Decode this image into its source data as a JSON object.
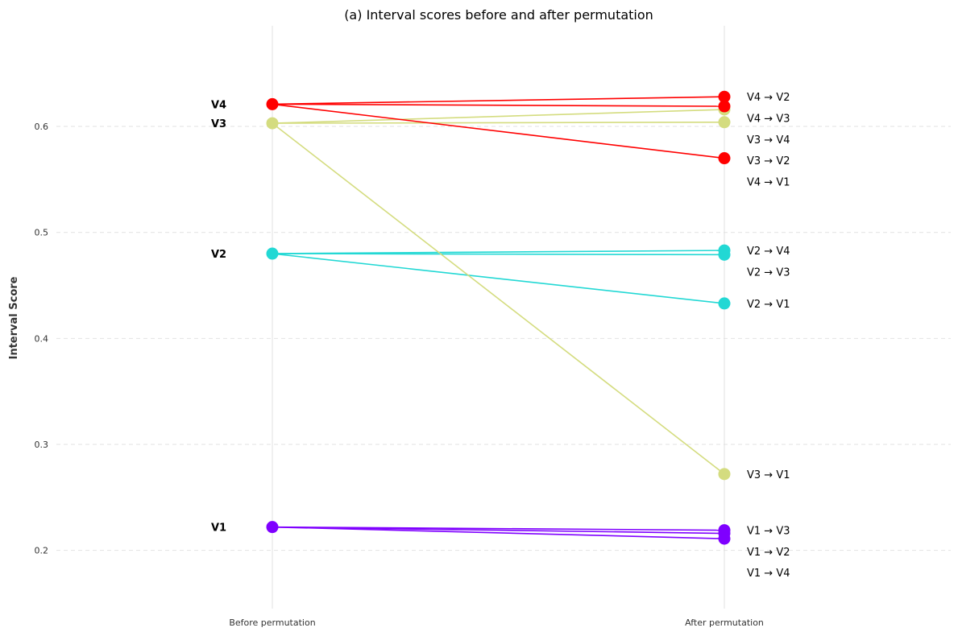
{
  "chart_data": {
    "type": "slope",
    "title": "(a) Interval scores before and after permutation",
    "ylabel": "Interval Score",
    "xlabel": "",
    "x_categories": [
      "Before permutation",
      "After permutation"
    ],
    "ylim": [
      0.145,
      0.695
    ],
    "yticks": [
      0.2,
      0.3,
      0.4,
      0.5,
      0.6
    ],
    "grid": "horizontal dashed",
    "variables": [
      {
        "name": "V4",
        "value": 0.621,
        "color": "#ff0000"
      },
      {
        "name": "V3",
        "value": 0.603,
        "color": "#d4dc7f"
      },
      {
        "name": "V2",
        "value": 0.48,
        "color": "#22d8d4"
      },
      {
        "name": "V1",
        "value": 0.222,
        "color": "#7f00ff"
      }
    ],
    "permutations": [
      {
        "label": "V4 → V2",
        "source": "V4",
        "after": 0.628
      },
      {
        "label": "V4 → V3",
        "source": "V4",
        "after": 0.619
      },
      {
        "label": "V4 → V1",
        "source": "V4",
        "after": 0.57
      },
      {
        "label": "V3 → V4",
        "source": "V3",
        "after": 0.616
      },
      {
        "label": "V3 → V2",
        "source": "V3",
        "after": 0.604
      },
      {
        "label": "V3 → V1",
        "source": "V3",
        "after": 0.272
      },
      {
        "label": "V2 → V4",
        "source": "V2",
        "after": 0.483
      },
      {
        "label": "V2 → V3",
        "source": "V2",
        "after": 0.479
      },
      {
        "label": "V2 → V1",
        "source": "V2",
        "after": 0.433
      },
      {
        "label": "V1 → V3",
        "source": "V1",
        "after": 0.219
      },
      {
        "label": "V1 → V2",
        "source": "V1",
        "after": 0.216
      },
      {
        "label": "V1 → V4",
        "source": "V1",
        "after": 0.211
      }
    ],
    "right_labels": [
      {
        "label": "V4 → V2",
        "y": 0.628
      },
      {
        "label": "V4 → V3",
        "y": 0.608
      },
      {
        "label": "V3 → V4",
        "y": 0.588
      },
      {
        "label": "V3 → V2",
        "y": 0.568
      },
      {
        "label": "V4 → V1",
        "y": 0.548
      },
      {
        "label": "V2 → V4",
        "y": 0.483
      },
      {
        "label": "V2 → V3",
        "y": 0.463
      },
      {
        "label": "V2 → V1",
        "y": 0.433
      },
      {
        "label": "V3 → V1",
        "y": 0.272
      },
      {
        "label": "V1 → V3",
        "y": 0.219
      },
      {
        "label": "V1 → V2",
        "y": 0.199
      },
      {
        "label": "V1 → V4",
        "y": 0.179
      }
    ]
  }
}
